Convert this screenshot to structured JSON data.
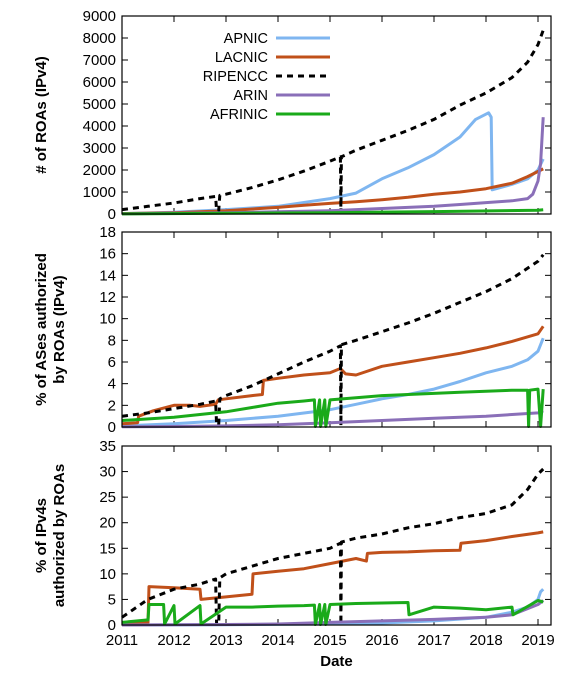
{
  "chart_data": [
    {
      "type": "line",
      "ylabel": "# of ROAs (IPv4)",
      "ylim": [
        0,
        9000
      ],
      "yticks": [
        0,
        1000,
        2000,
        3000,
        4000,
        5000,
        6000,
        7000,
        8000,
        9000
      ],
      "xlim": [
        2011,
        2019.25
      ],
      "legend": {
        "placement": "top-left"
      },
      "series": [
        {
          "name": "APNIC",
          "color": "#7fb6f0",
          "dash": "solid",
          "x": [
            2011.0,
            2012.0,
            2013.0,
            2014.0,
            2015.0,
            2015.5,
            2016.0,
            2016.5,
            2017.0,
            2017.5,
            2017.8,
            2018.05,
            2018.1,
            2018.12,
            2018.5,
            2018.8,
            2019.0,
            2019.1
          ],
          "y": [
            20,
            80,
            200,
            350,
            700,
            950,
            1600,
            2100,
            2700,
            3500,
            4300,
            4600,
            4400,
            1100,
            1350,
            1600,
            2000,
            2500
          ]
        },
        {
          "name": "LACNIC",
          "color": "#c0501a",
          "dash": "solid",
          "x": [
            2011.0,
            2012.0,
            2013.0,
            2014.0,
            2014.5,
            2015.0,
            2015.5,
            2016.0,
            2016.5,
            2017.0,
            2017.5,
            2018.0,
            2018.5,
            2018.8,
            2019.1
          ],
          "y": [
            20,
            60,
            150,
            300,
            400,
            480,
            560,
            650,
            760,
            900,
            1000,
            1150,
            1400,
            1700,
            2050
          ]
        },
        {
          "name": "RIPENCC",
          "color": "#000000",
          "dash": "dashed",
          "x": [
            2011.0,
            2011.5,
            2012.0,
            2012.5,
            2012.8,
            2012.82,
            2012.86,
            2012.88,
            2013.0,
            2013.5,
            2014.0,
            2014.5,
            2015.0,
            2015.2,
            2015.21,
            2015.22,
            2015.5,
            2016.0,
            2016.5,
            2017.0,
            2017.5,
            2018.0,
            2018.5,
            2018.8,
            2019.0,
            2019.1
          ],
          "y": [
            200,
            350,
            500,
            700,
            800,
            150,
            150,
            850,
            900,
            1200,
            1550,
            1950,
            2400,
            2600,
            50,
            2600,
            2900,
            3350,
            3800,
            4300,
            4950,
            5500,
            6200,
            6900,
            7700,
            8350
          ]
        },
        {
          "name": "ARIN",
          "color": "#8a6fb8",
          "dash": "solid",
          "x": [
            2011.0,
            2012.0,
            2013.0,
            2014.0,
            2015.0,
            2016.0,
            2017.0,
            2017.5,
            2018.0,
            2018.5,
            2018.8,
            2018.9,
            2019.0,
            2019.05,
            2019.08,
            2019.1
          ],
          "y": [
            10,
            30,
            60,
            100,
            150,
            250,
            350,
            430,
            520,
            600,
            700,
            900,
            1500,
            2300,
            3600,
            4400
          ]
        },
        {
          "name": "AFRINIC",
          "color": "#1aaa1a",
          "dash": "solid",
          "x": [
            2011.0,
            2013.0,
            2015.0,
            2017.0,
            2019.0,
            2019.1
          ],
          "y": [
            5,
            30,
            60,
            110,
            170,
            190
          ]
        }
      ]
    },
    {
      "type": "line",
      "ylabel": "% of ASes authorized by ROAs (IPv4)",
      "ylim": [
        0,
        18
      ],
      "yticks": [
        0,
        2,
        4,
        6,
        8,
        10,
        12,
        14,
        16,
        18
      ],
      "xlim": [
        2011,
        2019.25
      ],
      "series": [
        {
          "color": "#7fb6f0",
          "dash": "solid",
          "x": [
            2011.0,
            2012.0,
            2013.0,
            2014.0,
            2015.0,
            2015.5,
            2016.0,
            2016.5,
            2017.0,
            2017.5,
            2018.0,
            2018.5,
            2018.8,
            2019.0,
            2019.1
          ],
          "y": [
            0.1,
            0.3,
            0.6,
            1.0,
            1.6,
            2.1,
            2.6,
            3.0,
            3.5,
            4.2,
            5.0,
            5.6,
            6.2,
            7.0,
            8.2
          ]
        },
        {
          "color": "#c0501a",
          "dash": "solid",
          "x": [
            2011.0,
            2011.3,
            2011.32,
            2011.6,
            2012.0,
            2012.3,
            2012.5,
            2012.8,
            2012.85,
            2013.0,
            2013.5,
            2013.7,
            2013.72,
            2014.0,
            2014.5,
            2015.0,
            2015.2,
            2015.3,
            2015.5,
            2016.0,
            2016.5,
            2017.0,
            2017.5,
            2018.0,
            2018.5,
            2019.0,
            2019.1
          ],
          "y": [
            0.3,
            0.4,
            1.0,
            1.5,
            2.0,
            2.0,
            1.9,
            2.1,
            2.5,
            2.6,
            2.9,
            3.0,
            4.3,
            4.5,
            4.8,
            5.0,
            5.4,
            4.9,
            4.8,
            5.6,
            6.0,
            6.4,
            6.8,
            7.3,
            7.9,
            8.6,
            9.3
          ]
        },
        {
          "color": "#000000",
          "dash": "dashed",
          "x": [
            2011.0,
            2011.5,
            2012.0,
            2012.5,
            2012.8,
            2012.82,
            2012.86,
            2012.88,
            2013.0,
            2013.5,
            2014.0,
            2014.5,
            2015.0,
            2015.2,
            2015.21,
            2015.22,
            2015.5,
            2016.0,
            2016.5,
            2017.0,
            2017.5,
            2018.0,
            2018.5,
            2019.0,
            2019.1
          ],
          "y": [
            1.0,
            1.3,
            1.7,
            2.1,
            2.4,
            0.2,
            0.2,
            2.6,
            2.9,
            3.8,
            4.9,
            6.0,
            7.0,
            7.5,
            0.1,
            7.6,
            8.0,
            8.8,
            9.6,
            10.5,
            11.5,
            12.5,
            13.7,
            15.3,
            15.9
          ]
        },
        {
          "color": "#8a6fb8",
          "dash": "solid",
          "x": [
            2011.0,
            2012.0,
            2013.0,
            2014.0,
            2015.0,
            2016.0,
            2017.0,
            2018.0,
            2019.0,
            2019.1
          ],
          "y": [
            0.02,
            0.05,
            0.1,
            0.2,
            0.4,
            0.6,
            0.8,
            1.0,
            1.3,
            1.5
          ]
        },
        {
          "color": "#1aaa1a",
          "dash": "solid",
          "x": [
            2011.0,
            2012.0,
            2013.0,
            2013.5,
            2014.0,
            2014.5,
            2014.7,
            2014.72,
            2014.8,
            2014.82,
            2014.9,
            2014.92,
            2015.0,
            2015.5,
            2016.0,
            2016.5,
            2017.0,
            2017.5,
            2018.0,
            2018.5,
            2018.8,
            2018.82,
            2018.84,
            2019.0,
            2019.05,
            2019.1
          ],
          "y": [
            0.6,
            0.9,
            1.4,
            1.8,
            2.2,
            2.4,
            2.5,
            0.05,
            2.5,
            0.05,
            2.5,
            0.05,
            2.5,
            2.7,
            2.9,
            3.0,
            3.1,
            3.2,
            3.3,
            3.4,
            3.4,
            0.05,
            3.4,
            3.5,
            0.05,
            3.5
          ]
        }
      ]
    },
    {
      "type": "line",
      "xlabel": "Date",
      "ylabel": "% of IPv4s authorized by ROAs",
      "ylim": [
        0,
        35
      ],
      "yticks": [
        0,
        5,
        10,
        15,
        20,
        25,
        30,
        35
      ],
      "xlim": [
        2011,
        2019.25
      ],
      "xticks": [
        "2011",
        "2012",
        "2013",
        "2014",
        "2015",
        "2016",
        "2017",
        "2018",
        "2019"
      ],
      "series": [
        {
          "color": "#7fb6f0",
          "dash": "solid",
          "x": [
            2011.0,
            2013.0,
            2015.0,
            2016.0,
            2017.0,
            2018.0,
            2018.5,
            2018.8,
            2019.0,
            2019.05,
            2019.1
          ],
          "y": [
            0.0,
            0.05,
            0.2,
            0.4,
            0.8,
            1.5,
            2.5,
            3.5,
            5.0,
            6.5,
            7.0
          ]
        },
        {
          "color": "#c0501a",
          "dash": "solid",
          "x": [
            2011.0,
            2011.5,
            2011.52,
            2012.0,
            2012.5,
            2012.52,
            2013.0,
            2013.5,
            2013.52,
            2014.0,
            2014.5,
            2015.0,
            2015.5,
            2015.7,
            2015.72,
            2016.0,
            2016.5,
            2017.0,
            2017.5,
            2017.52,
            2018.0,
            2018.5,
            2019.0,
            2019.1
          ],
          "y": [
            0.3,
            0.5,
            7.5,
            7.3,
            7.0,
            5.0,
            5.5,
            6.0,
            10.0,
            10.5,
            11.0,
            12.0,
            13.0,
            12.5,
            14.0,
            14.2,
            14.3,
            14.5,
            14.6,
            16.0,
            16.5,
            17.3,
            18.0,
            18.2
          ]
        },
        {
          "color": "#000000",
          "dash": "dashed",
          "x": [
            2011.0,
            2011.5,
            2012.0,
            2012.5,
            2012.8,
            2012.82,
            2012.86,
            2012.88,
            2013.0,
            2013.5,
            2014.0,
            2014.5,
            2015.0,
            2015.2,
            2015.21,
            2015.22,
            2015.5,
            2016.0,
            2016.5,
            2017.0,
            2017.5,
            2018.0,
            2018.5,
            2018.8,
            2019.0,
            2019.1
          ],
          "y": [
            1.5,
            5.0,
            7.0,
            8.0,
            9.0,
            0.1,
            0.1,
            9.2,
            10.0,
            11.5,
            13.0,
            14.0,
            15.0,
            16.0,
            0.1,
            16.2,
            17.0,
            17.8,
            19.0,
            19.8,
            21.0,
            21.8,
            23.5,
            26.5,
            29.5,
            30.5
          ]
        },
        {
          "color": "#8a6fb8",
          "dash": "solid",
          "x": [
            2011.0,
            2012.0,
            2013.0,
            2014.0,
            2015.0,
            2016.0,
            2017.0,
            2018.0,
            2018.5,
            2019.0,
            2019.1
          ],
          "y": [
            0.0,
            0.05,
            0.1,
            0.2,
            0.5,
            0.8,
            1.1,
            1.5,
            2.0,
            4.0,
            4.8
          ]
        },
        {
          "color": "#1aaa1a",
          "dash": "solid",
          "x": [
            2011.0,
            2011.5,
            2011.52,
            2011.8,
            2011.82,
            2012.0,
            2012.02,
            2012.5,
            2012.52,
            2013.0,
            2013.5,
            2014.0,
            2014.5,
            2014.7,
            2014.72,
            2014.8,
            2014.82,
            2014.9,
            2014.92,
            2015.0,
            2015.5,
            2016.0,
            2016.5,
            2016.52,
            2017.0,
            2017.5,
            2018.0,
            2018.5,
            2018.52,
            2019.0,
            2019.1
          ],
          "y": [
            0.5,
            1.0,
            4.0,
            4.0,
            0.2,
            3.8,
            0.2,
            3.8,
            0.2,
            3.5,
            3.5,
            3.7,
            3.8,
            3.9,
            0.1,
            4.0,
            0.1,
            4.0,
            0.1,
            4.0,
            4.2,
            4.3,
            4.4,
            2.0,
            3.5,
            3.3,
            3.0,
            3.5,
            2.0,
            4.8,
            4.5
          ]
        }
      ]
    }
  ]
}
